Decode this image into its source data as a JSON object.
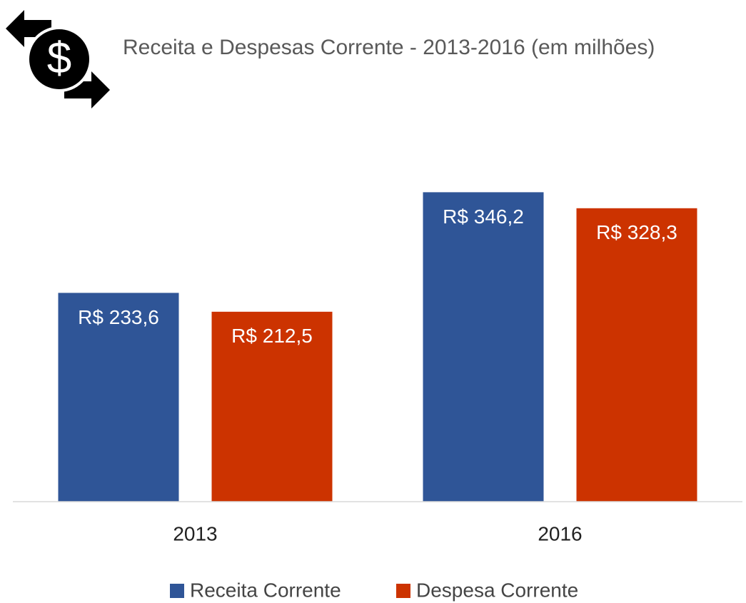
{
  "chart_data": {
    "type": "bar",
    "title": "Receita e Despesas Corrente - 2013-2016 (em milhões)",
    "categories": [
      "2013",
      "2016"
    ],
    "series": [
      {
        "name": "Receita Corrente",
        "color": "#2f5597",
        "values": [
          233.6,
          346.2
        ],
        "value_labels": [
          "R$ 233,6",
          "R$ 346,2"
        ]
      },
      {
        "name": "Despesa Corrente",
        "color": "#cc3300",
        "values": [
          212.5,
          328.3
        ],
        "value_labels": [
          "R$ 212,5",
          "R$ 328,3"
        ]
      }
    ],
    "ylim": [
      0,
      400
    ],
    "legend": "bottom"
  }
}
